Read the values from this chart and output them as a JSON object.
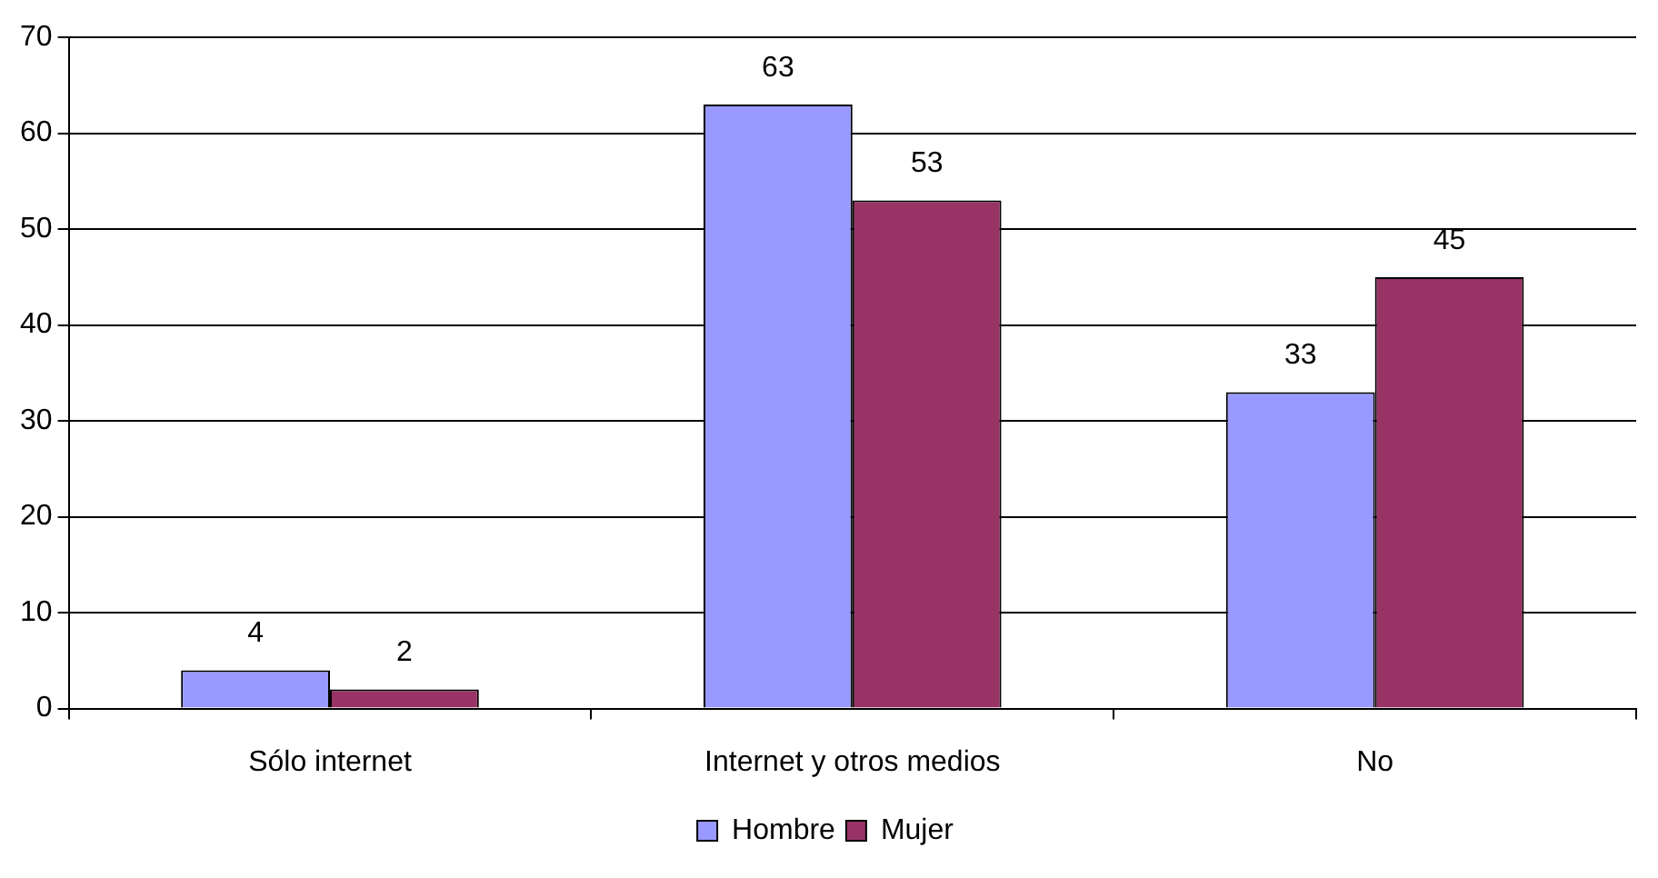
{
  "chart_data": {
    "type": "bar",
    "categories": [
      "Sólo internet",
      "Internet y otros medios",
      "No"
    ],
    "series": [
      {
        "name": "Hombre",
        "color": "#9999ff",
        "values": [
          4,
          63,
          33
        ]
      },
      {
        "name": "Mujer",
        "color": "#993366",
        "values": [
          2,
          53,
          45
        ]
      }
    ],
    "ylim": [
      0,
      70
    ],
    "yticks": [
      0,
      10,
      20,
      30,
      40,
      50,
      60,
      70
    ],
    "grid": "y",
    "legend": "bottom",
    "data_labels": true
  }
}
